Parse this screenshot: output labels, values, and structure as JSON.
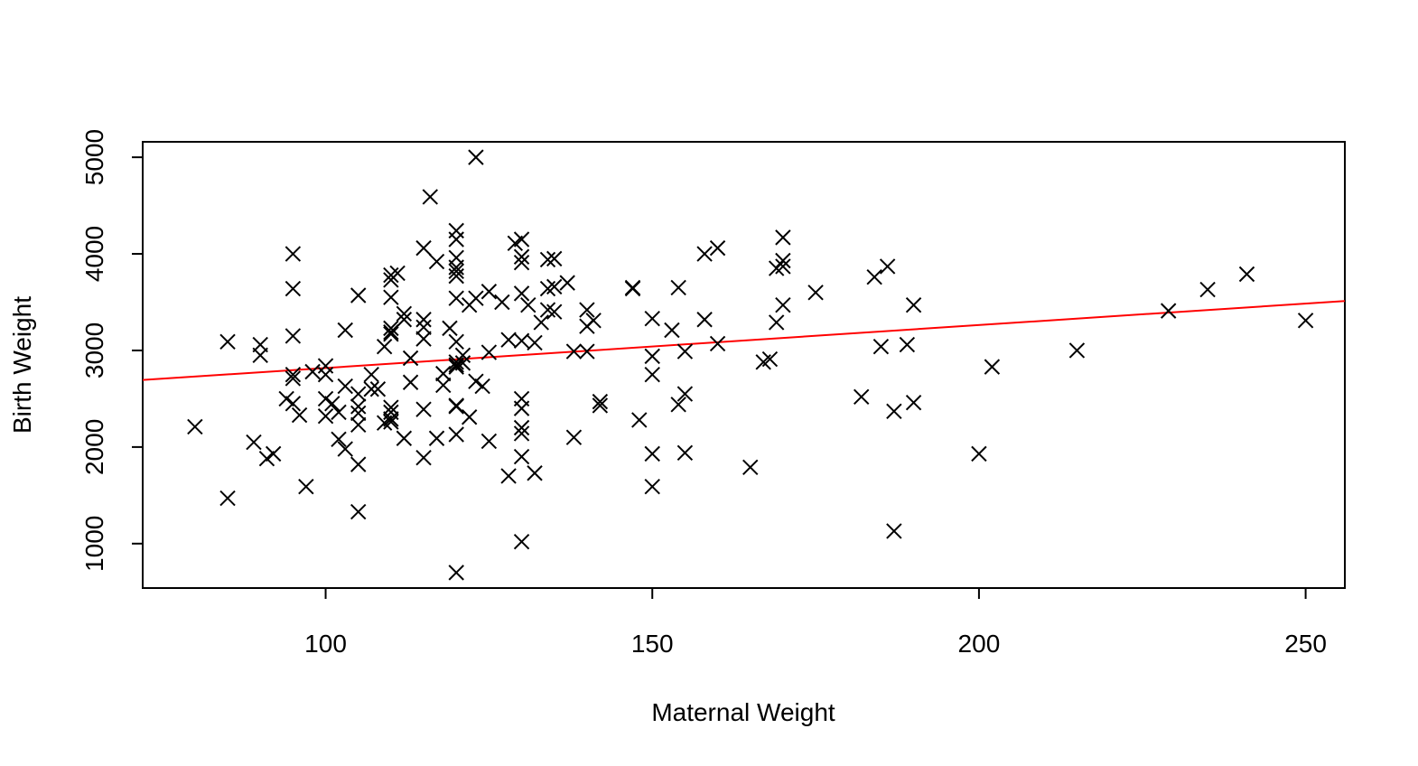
{
  "chart_data": {
    "type": "scatter",
    "title": "",
    "xlabel": "Maternal Weight",
    "ylabel": "Birth Weight",
    "xlim": [
      72,
      256
    ],
    "ylim": [
      540,
      5160
    ],
    "xticks": [
      100,
      150,
      200,
      250
    ],
    "yticks": [
      1000,
      2000,
      3000,
      4000,
      5000
    ],
    "xtick_labels": [
      "100",
      "150",
      "200",
      "250"
    ],
    "ytick_labels": [
      "1000",
      "2000",
      "3000",
      "4000",
      "5000"
    ],
    "marker": "x",
    "point_color": "#000000",
    "fit_line": {
      "color": "#ff0000",
      "x": [
        72,
        256
      ],
      "y": [
        2694,
        3512
      ]
    },
    "grid": false,
    "legend": "none",
    "points": [
      [
        80,
        2210
      ],
      [
        85,
        3090
      ],
      [
        85,
        1470
      ],
      [
        89,
        2050
      ],
      [
        90,
        3060
      ],
      [
        90,
        2950
      ],
      [
        91,
        1880
      ],
      [
        92,
        1930
      ],
      [
        94,
        2500
      ],
      [
        95,
        4000
      ],
      [
        95,
        3640
      ],
      [
        95,
        3150
      ],
      [
        95,
        2750
      ],
      [
        95,
        2710
      ],
      [
        95,
        2450
      ],
      [
        96,
        2330
      ],
      [
        97,
        1590
      ],
      [
        98,
        2780
      ],
      [
        100,
        2840
      ],
      [
        100,
        2750
      ],
      [
        100,
        2500
      ],
      [
        100,
        2320
      ],
      [
        101,
        2450
      ],
      [
        102,
        2080
      ],
      [
        102,
        2360
      ],
      [
        103,
        3210
      ],
      [
        103,
        1980
      ],
      [
        103,
        2630
      ],
      [
        105,
        3570
      ],
      [
        105,
        2550
      ],
      [
        105,
        2420
      ],
      [
        105,
        2350
      ],
      [
        105,
        2230
      ],
      [
        105,
        1820
      ],
      [
        105,
        1330
      ],
      [
        107,
        2750
      ],
      [
        107,
        2600
      ],
      [
        108,
        2600
      ],
      [
        109,
        3040
      ],
      [
        109,
        2250
      ],
      [
        110,
        3780
      ],
      [
        110,
        3730
      ],
      [
        110,
        3550
      ],
      [
        110,
        3230
      ],
      [
        110,
        3190
      ],
      [
        110,
        3170
      ],
      [
        110,
        2410
      ],
      [
        110,
        2360
      ],
      [
        110,
        2290
      ],
      [
        110,
        2260
      ],
      [
        111,
        3800
      ],
      [
        112,
        3380
      ],
      [
        112,
        3320
      ],
      [
        112,
        2090
      ],
      [
        113,
        2920
      ],
      [
        113,
        2670
      ],
      [
        115,
        4060
      ],
      [
        115,
        3320
      ],
      [
        115,
        3240
      ],
      [
        115,
        3120
      ],
      [
        115,
        2390
      ],
      [
        115,
        1890
      ],
      [
        116,
        4590
      ],
      [
        117,
        3920
      ],
      [
        117,
        2090
      ],
      [
        118,
        2760
      ],
      [
        118,
        2640
      ],
      [
        119,
        3230
      ],
      [
        120,
        4240
      ],
      [
        120,
        4150
      ],
      [
        120,
        3960
      ],
      [
        120,
        3860
      ],
      [
        120,
        3820
      ],
      [
        120,
        3770
      ],
      [
        120,
        3540
      ],
      [
        120,
        3090
      ],
      [
        120,
        2880
      ],
      [
        120,
        2850
      ],
      [
        120,
        2830
      ],
      [
        120,
        2430
      ],
      [
        120,
        2420
      ],
      [
        120,
        2130
      ],
      [
        120,
        700
      ],
      [
        121,
        2950
      ],
      [
        121,
        2870
      ],
      [
        122,
        3470
      ],
      [
        122,
        2310
      ],
      [
        123,
        5000
      ],
      [
        123,
        3540
      ],
      [
        123,
        2680
      ],
      [
        124,
        2630
      ],
      [
        125,
        3610
      ],
      [
        125,
        2980
      ],
      [
        125,
        2060
      ],
      [
        127,
        3500
      ],
      [
        128,
        3110
      ],
      [
        128,
        1700
      ],
      [
        129,
        4110
      ],
      [
        130,
        4150
      ],
      [
        130,
        3970
      ],
      [
        130,
        3910
      ],
      [
        130,
        3590
      ],
      [
        130,
        3100
      ],
      [
        130,
        2500
      ],
      [
        130,
        2400
      ],
      [
        130,
        2200
      ],
      [
        130,
        2140
      ],
      [
        130,
        1900
      ],
      [
        130,
        1020
      ],
      [
        131,
        3470
      ],
      [
        132,
        3080
      ],
      [
        132,
        1730
      ],
      [
        133,
        3290
      ],
      [
        134,
        3940
      ],
      [
        134,
        3640
      ],
      [
        134,
        3420
      ],
      [
        135,
        3950
      ],
      [
        135,
        3660
      ],
      [
        135,
        3400
      ],
      [
        137,
        3700
      ],
      [
        138,
        2990
      ],
      [
        138,
        2100
      ],
      [
        140,
        3420
      ],
      [
        140,
        3250
      ],
      [
        140,
        2990
      ],
      [
        141,
        3310
      ],
      [
        142,
        2470
      ],
      [
        142,
        2430
      ],
      [
        147,
        3650
      ],
      [
        147,
        3640
      ],
      [
        148,
        2280
      ],
      [
        150,
        3330
      ],
      [
        150,
        2940
      ],
      [
        150,
        2750
      ],
      [
        150,
        1930
      ],
      [
        150,
        1590
      ],
      [
        153,
        3210
      ],
      [
        154,
        3650
      ],
      [
        154,
        2440
      ],
      [
        155,
        2990
      ],
      [
        155,
        2550
      ],
      [
        155,
        1940
      ],
      [
        158,
        4000
      ],
      [
        158,
        3320
      ],
      [
        160,
        4060
      ],
      [
        160,
        3070
      ],
      [
        165,
        1790
      ],
      [
        167,
        2880
      ],
      [
        168,
        2910
      ],
      [
        169,
        3850
      ],
      [
        169,
        3290
      ],
      [
        170,
        4170
      ],
      [
        170,
        3930
      ],
      [
        170,
        3870
      ],
      [
        170,
        3470
      ],
      [
        175,
        3600
      ],
      [
        182,
        2520
      ],
      [
        184,
        3760
      ],
      [
        185,
        3040
      ],
      [
        186,
        3870
      ],
      [
        187,
        2370
      ],
      [
        187,
        1130
      ],
      [
        189,
        3060
      ],
      [
        190,
        3470
      ],
      [
        190,
        2460
      ],
      [
        200,
        1930
      ],
      [
        202,
        2830
      ],
      [
        215,
        3000
      ],
      [
        229,
        3410
      ],
      [
        235,
        3630
      ],
      [
        241,
        3790
      ],
      [
        250,
        3310
      ]
    ]
  }
}
